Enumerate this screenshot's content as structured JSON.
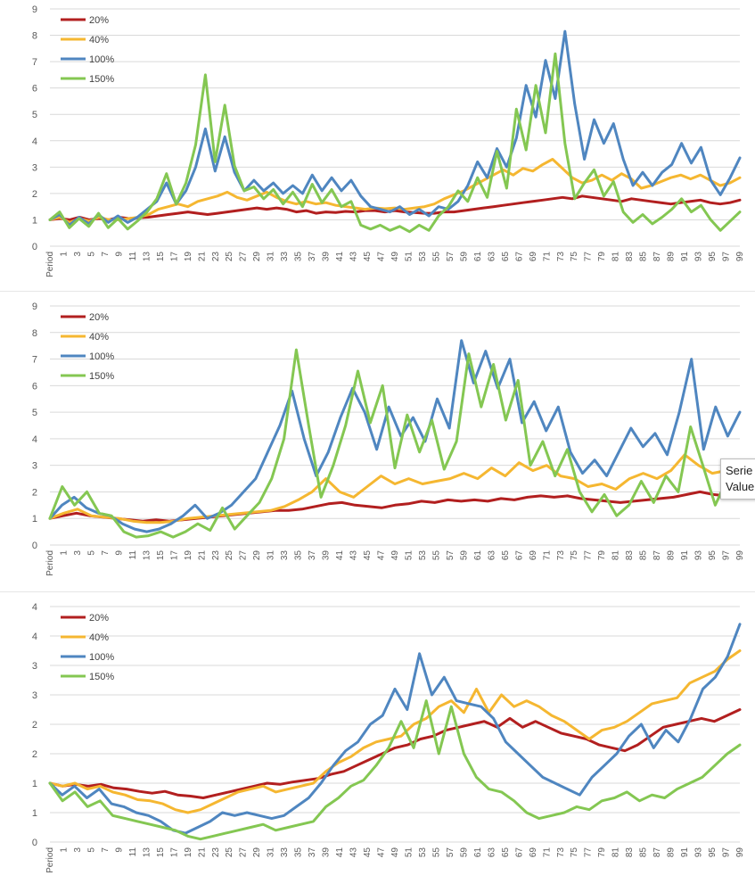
{
  "chart_data": [
    {
      "type": "line",
      "ylim": [
        0,
        9
      ],
      "yticks": [
        "0",
        "1",
        "2",
        "3",
        "4",
        "5",
        "6",
        "7",
        "8",
        "9"
      ],
      "x_first_label": "Period",
      "x_tick_labels": [
        "1",
        "3",
        "5",
        "7",
        "9",
        "11",
        "13",
        "15",
        "17",
        "19",
        "21",
        "23",
        "25",
        "27",
        "29",
        "31",
        "33",
        "35",
        "37",
        "39",
        "41",
        "43",
        "45",
        "47",
        "49",
        "51",
        "53",
        "55",
        "57",
        "59",
        "61",
        "63",
        "65",
        "67",
        "69",
        "71",
        "73",
        "75",
        "77",
        "79",
        "81",
        "83",
        "85",
        "87",
        "89",
        "91",
        "93",
        "95",
        "97",
        "99"
      ],
      "legend_position": "top-left",
      "series": [
        {
          "name": "20%",
          "color": "#b21f1f",
          "values": [
            1,
            1.05,
            1,
            1.1,
            1,
            1.05,
            1,
            1.1,
            1.05,
            1.08,
            1.1,
            1.15,
            1.2,
            1.25,
            1.3,
            1.25,
            1.2,
            1.25,
            1.3,
            1.35,
            1.4,
            1.45,
            1.4,
            1.45,
            1.4,
            1.3,
            1.35,
            1.25,
            1.3,
            1.28,
            1.32,
            1.3,
            1.35,
            1.35,
            1.3,
            1.35,
            1.3,
            1.28,
            1.25,
            1.25,
            1.3,
            1.3,
            1.35,
            1.4,
            1.45,
            1.5,
            1.55,
            1.6,
            1.65,
            1.7,
            1.75,
            1.8,
            1.85,
            1.8,
            1.9,
            1.85,
            1.8,
            1.75,
            1.7,
            1.8,
            1.75,
            1.7,
            1.65,
            1.6,
            1.65,
            1.7,
            1.75,
            1.65,
            1.6,
            1.65,
            1.75
          ]
        },
        {
          "name": "40%",
          "color": "#f5b731",
          "values": [
            1,
            1.1,
            0.9,
            1.05,
            0.95,
            1.1,
            1,
            1,
            1.05,
            1.1,
            1.2,
            1.4,
            1.5,
            1.6,
            1.5,
            1.7,
            1.8,
            1.9,
            2.05,
            1.85,
            1.75,
            1.9,
            2.05,
            1.85,
            1.7,
            1.6,
            1.7,
            1.6,
            1.65,
            1.55,
            1.5,
            1.45,
            1.4,
            1.45,
            1.42,
            1.45,
            1.4,
            1.45,
            1.5,
            1.6,
            1.8,
            1.95,
            2.1,
            2.3,
            2.5,
            2.7,
            2.9,
            2.7,
            2.95,
            2.85,
            3.1,
            3.3,
            2.95,
            2.6,
            2.4,
            2.5,
            2.7,
            2.5,
            2.75,
            2.55,
            2.2,
            2.3,
            2.45,
            2.6,
            2.7,
            2.55,
            2.7,
            2.5,
            2.3,
            2.4,
            2.6
          ]
        },
        {
          "name": "100%",
          "color": "#4f86c0",
          "values": [
            1,
            1.2,
            0.8,
            1.1,
            0.85,
            1.2,
            0.9,
            1.15,
            0.9,
            1.1,
            1.4,
            1.7,
            2.4,
            1.6,
            2.1,
            3,
            4.45,
            2.85,
            4.15,
            2.8,
            2.1,
            2.5,
            2.1,
            2.4,
            2,
            2.3,
            2,
            2.7,
            2.1,
            2.6,
            2.1,
            2.5,
            1.9,
            1.5,
            1.4,
            1.3,
            1.5,
            1.2,
            1.4,
            1.15,
            1.5,
            1.4,
            1.7,
            2.3,
            3.2,
            2.6,
            3.7,
            3,
            4.1,
            6.1,
            4.9,
            7.05,
            5.6,
            8.15,
            5.4,
            3.3,
            4.8,
            3.9,
            4.65,
            3.3,
            2.3,
            2.8,
            2.3,
            2.8,
            3.1,
            3.9,
            3.15,
            3.75,
            2.5,
            1.95,
            2.6,
            3.35
          ]
        },
        {
          "name": "150%",
          "color": "#84c752",
          "values": [
            1,
            1.3,
            0.7,
            1.05,
            0.75,
            1.25,
            0.7,
            1.05,
            0.65,
            0.95,
            1.3,
            1.8,
            2.75,
            1.6,
            2.4,
            3.85,
            6.5,
            3.2,
            5.35,
            3.05,
            2.1,
            2.25,
            1.8,
            2.15,
            1.6,
            2.05,
            1.5,
            2.35,
            1.65,
            2.15,
            1.5,
            1.7,
            0.8,
            0.65,
            0.8,
            0.6,
            0.75,
            0.55,
            0.8,
            0.6,
            1.15,
            1.5,
            2.1,
            1.7,
            2.6,
            1.85,
            3.6,
            2.2,
            5.2,
            3.65,
            6.1,
            4.3,
            7.3,
            3.9,
            1.8,
            2.4,
            2.9,
            1.9,
            2.45,
            1.3,
            0.9,
            1.2,
            0.85,
            1.1,
            1.4,
            1.8,
            1.3,
            1.55,
            1.0,
            0.6,
            0.95,
            1.3
          ]
        }
      ]
    },
    {
      "type": "line",
      "ylim": [
        0,
        9
      ],
      "yticks": [
        "0",
        "1",
        "2",
        "3",
        "4",
        "5",
        "6",
        "7",
        "8",
        "9"
      ],
      "x_first_label": "Period",
      "x_tick_labels": [
        "1",
        "3",
        "5",
        "7",
        "9",
        "11",
        "13",
        "15",
        "17",
        "19",
        "21",
        "23",
        "25",
        "27",
        "29",
        "31",
        "33",
        "35",
        "37",
        "39",
        "41",
        "43",
        "45",
        "47",
        "49",
        "51",
        "53",
        "55",
        "57",
        "59",
        "61",
        "63",
        "65",
        "67",
        "69",
        "71",
        "73",
        "75",
        "77",
        "79",
        "81",
        "83",
        "85",
        "87",
        "89",
        "91",
        "93",
        "95",
        "97",
        "99"
      ],
      "legend_position": "top-left",
      "series": [
        {
          "name": "20%",
          "color": "#b21f1f",
          "values": [
            1,
            1.1,
            1.2,
            1.1,
            1.05,
            1.0,
            0.95,
            0.9,
            0.95,
            0.9,
            0.95,
            1.0,
            1.05,
            1.1,
            1.15,
            1.2,
            1.25,
            1.3,
            1.3,
            1.35,
            1.45,
            1.55,
            1.6,
            1.5,
            1.45,
            1.4,
            1.5,
            1.55,
            1.65,
            1.6,
            1.7,
            1.65,
            1.7,
            1.65,
            1.75,
            1.7,
            1.8,
            1.85,
            1.8,
            1.85,
            1.75,
            1.7,
            1.65,
            1.6,
            1.65,
            1.7,
            1.75,
            1.8,
            1.9,
            2.0,
            1.9,
            1.85,
            1.8
          ]
        },
        {
          "name": "40%",
          "color": "#f5b731",
          "values": [
            1,
            1.2,
            1.35,
            1.1,
            1.05,
            1.0,
            0.9,
            0.85,
            0.85,
            0.9,
            1.0,
            1.05,
            1.1,
            1.15,
            1.2,
            1.25,
            1.3,
            1.45,
            1.7,
            2.0,
            2.5,
            2.0,
            1.8,
            2.2,
            2.6,
            2.3,
            2.5,
            2.3,
            2.4,
            2.5,
            2.7,
            2.5,
            2.9,
            2.6,
            3.1,
            2.8,
            3.0,
            2.6,
            2.5,
            2.2,
            2.3,
            2.1,
            2.5,
            2.7,
            2.5,
            2.8,
            3.4,
            3.0,
            2.7,
            2.8,
            3.0
          ]
        },
        {
          "name": "100%",
          "color": "#4f86c0",
          "values": [
            1,
            1.5,
            1.8,
            1.4,
            1.2,
            1.1,
            0.8,
            0.6,
            0.5,
            0.6,
            0.8,
            1.1,
            1.5,
            1.0,
            1.2,
            1.5,
            2.0,
            2.5,
            3.5,
            4.5,
            5.8,
            4.0,
            2.6,
            3.5,
            4.8,
            5.9,
            5.0,
            3.6,
            5.2,
            4.1,
            4.8,
            3.9,
            5.5,
            4.4,
            7.7,
            6.1,
            7.3,
            5.9,
            7.0,
            4.6,
            5.4,
            4.3,
            5.2,
            3.5,
            2.7,
            3.2,
            2.6,
            3.5,
            4.4,
            3.7,
            4.2,
            3.4,
            5.0,
            7.0,
            3.6,
            5.2,
            4.1,
            5.0
          ]
        },
        {
          "name": "150%",
          "color": "#84c752",
          "values": [
            1,
            2.2,
            1.5,
            2.0,
            1.2,
            1.1,
            0.5,
            0.3,
            0.35,
            0.5,
            0.3,
            0.5,
            0.8,
            0.55,
            1.4,
            0.6,
            1.1,
            1.6,
            2.5,
            4.0,
            7.35,
            4.5,
            1.8,
            3.0,
            4.5,
            6.55,
            4.6,
            6.0,
            2.9,
            4.9,
            3.5,
            4.7,
            2.85,
            3.9,
            7.2,
            5.2,
            6.8,
            4.7,
            6.2,
            3.0,
            3.9,
            2.6,
            3.6,
            2.0,
            1.25,
            1.9,
            1.1,
            1.5,
            2.4,
            1.6,
            2.6,
            2.0,
            4.45,
            3.0,
            1.5,
            2.5,
            2.1
          ]
        }
      ]
    },
    {
      "type": "line",
      "ylim": [
        0,
        4
      ],
      "yticks": [
        "0",
        "1",
        "1",
        "2",
        "2",
        "3",
        "3",
        "4",
        "4"
      ],
      "x_first_label": "Period",
      "x_tick_labels": [
        "1",
        "3",
        "5",
        "7",
        "9",
        "11",
        "13",
        "15",
        "17",
        "19",
        "21",
        "23",
        "25",
        "27",
        "29",
        "31",
        "33",
        "35",
        "37",
        "39",
        "41",
        "43",
        "45",
        "47",
        "49",
        "51",
        "53",
        "55",
        "57",
        "59",
        "61",
        "63",
        "65",
        "67",
        "69",
        "71",
        "73",
        "75",
        "77",
        "79",
        "81",
        "83",
        "85",
        "87",
        "89",
        "91",
        "93",
        "95",
        "97",
        "99"
      ],
      "legend_position": "top-left",
      "series": [
        {
          "name": "20%",
          "color": "#b21f1f",
          "values": [
            1,
            0.95,
            0.98,
            0.95,
            0.98,
            0.92,
            0.9,
            0.86,
            0.83,
            0.86,
            0.8,
            0.78,
            0.75,
            0.8,
            0.85,
            0.9,
            0.95,
            1.0,
            0.98,
            1.02,
            1.05,
            1.08,
            1.15,
            1.2,
            1.3,
            1.4,
            1.5,
            1.6,
            1.65,
            1.75,
            1.8,
            1.9,
            1.95,
            2.0,
            2.05,
            1.95,
            2.1,
            1.95,
            2.05,
            1.95,
            1.85,
            1.8,
            1.75,
            1.65,
            1.6,
            1.55,
            1.65,
            1.8,
            1.95,
            2.0,
            2.05,
            2.1,
            2.05,
            2.15,
            2.25
          ]
        },
        {
          "name": "40%",
          "color": "#f5b731",
          "values": [
            1,
            0.95,
            1.0,
            0.9,
            0.95,
            0.85,
            0.8,
            0.72,
            0.7,
            0.65,
            0.55,
            0.5,
            0.55,
            0.65,
            0.75,
            0.85,
            0.9,
            0.95,
            0.85,
            0.9,
            0.95,
            1.0,
            1.2,
            1.35,
            1.45,
            1.6,
            1.7,
            1.75,
            1.8,
            2.0,
            2.1,
            2.3,
            2.4,
            2.2,
            2.6,
            2.2,
            2.5,
            2.3,
            2.4,
            2.3,
            2.15,
            2.05,
            1.9,
            1.75,
            1.9,
            1.95,
            2.05,
            2.2,
            2.35,
            2.4,
            2.45,
            2.7,
            2.8,
            2.9,
            3.1,
            3.25
          ]
        },
        {
          "name": "100%",
          "color": "#4f86c0",
          "values": [
            1,
            0.8,
            0.95,
            0.75,
            0.9,
            0.65,
            0.6,
            0.5,
            0.45,
            0.35,
            0.2,
            0.15,
            0.25,
            0.35,
            0.5,
            0.45,
            0.5,
            0.45,
            0.4,
            0.45,
            0.6,
            0.75,
            1.0,
            1.3,
            1.55,
            1.7,
            2.0,
            2.15,
            2.6,
            2.25,
            3.2,
            2.5,
            2.8,
            2.4,
            2.35,
            2.3,
            2.1,
            1.7,
            1.5,
            1.3,
            1.1,
            1.0,
            0.9,
            0.8,
            1.1,
            1.3,
            1.5,
            1.8,
            2.0,
            1.6,
            1.9,
            1.7,
            2.1,
            2.6,
            2.8,
            3.15,
            3.7
          ]
        },
        {
          "name": "150%",
          "color": "#84c752",
          "values": [
            1,
            0.7,
            0.85,
            0.6,
            0.7,
            0.45,
            0.4,
            0.35,
            0.3,
            0.25,
            0.2,
            0.1,
            0.05,
            0.1,
            0.15,
            0.2,
            0.25,
            0.3,
            0.2,
            0.25,
            0.3,
            0.35,
            0.6,
            0.75,
            0.95,
            1.05,
            1.3,
            1.6,
            2.05,
            1.6,
            2.4,
            1.5,
            2.3,
            1.5,
            1.1,
            0.9,
            0.85,
            0.7,
            0.5,
            0.4,
            0.45,
            0.5,
            0.6,
            0.55,
            0.7,
            0.75,
            0.85,
            0.7,
            0.8,
            0.75,
            0.9,
            1.0,
            1.1,
            1.3,
            1.5,
            1.65
          ]
        }
      ]
    }
  ],
  "tooltip": {
    "line1": "Serie",
    "line2": "Value"
  },
  "cut_label": "··· ·· · ·"
}
